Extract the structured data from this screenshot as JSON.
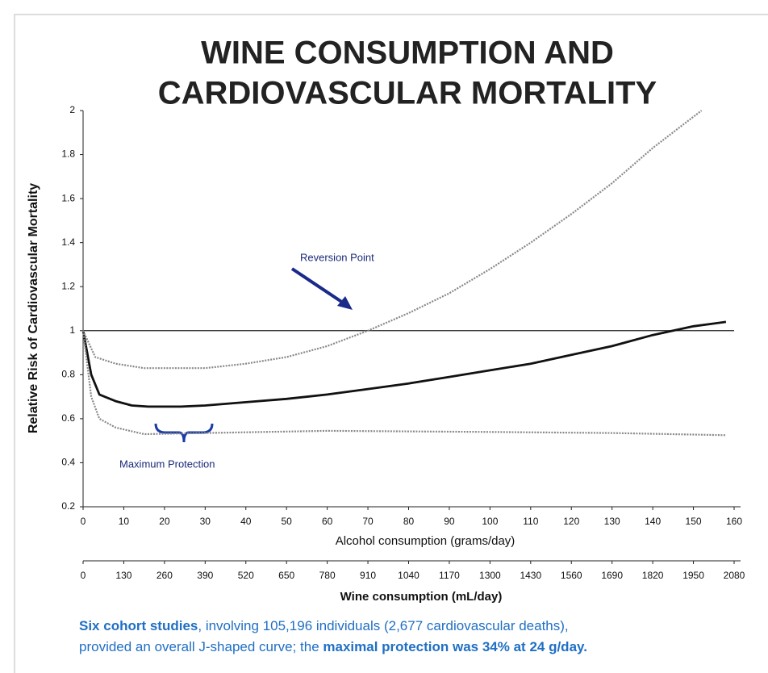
{
  "chart_data": {
    "type": "line",
    "title": [
      "WINE CONSUMPTION AND",
      "CARDIOVASCULAR MORTALITY"
    ],
    "x_label": "Alcohol consumption (grams/day)",
    "y_label": "Relative Risk of Cardiovascular Mortality",
    "x2_label": "Wine consumption (mL/day)",
    "xlim": [
      0,
      160
    ],
    "xticks": [
      0,
      10,
      20,
      30,
      40,
      50,
      60,
      70,
      80,
      90,
      100,
      110,
      120,
      130,
      140,
      150,
      160
    ],
    "x2lim": [
      0,
      2080
    ],
    "x2ticks": [
      0,
      130,
      260,
      390,
      520,
      650,
      780,
      910,
      1040,
      1170,
      1300,
      1430,
      1560,
      1690,
      1820,
      1950,
      2080
    ],
    "ylim": [
      0.2,
      2
    ],
    "yticks": [
      0.2,
      0.4,
      0.6,
      0.8,
      1,
      1.2,
      1.4,
      1.6,
      1.8,
      2
    ],
    "reference_line": 1,
    "series": [
      {
        "color": "#111111",
        "dash": false,
        "x": [
          0,
          2,
          4,
          8,
          12,
          16,
          24,
          30,
          40,
          50,
          60,
          70,
          80,
          90,
          100,
          110,
          120,
          130,
          140,
          150,
          158
        ],
        "values": [
          1,
          0.8,
          0.71,
          0.68,
          0.66,
          0.655,
          0.655,
          0.66,
          0.675,
          0.69,
          0.71,
          0.735,
          0.76,
          0.79,
          0.82,
          0.85,
          0.89,
          0.93,
          0.98,
          1.02,
          1.04
        ]
      },
      {
        "color": "#888888",
        "dash": true,
        "x": [
          0,
          3,
          8,
          15,
          30,
          40,
          50,
          60,
          70,
          80,
          90,
          100,
          110,
          120,
          130,
          140,
          152
        ],
        "values": [
          1,
          0.88,
          0.85,
          0.83,
          0.83,
          0.85,
          0.88,
          0.93,
          1.0,
          1.08,
          1.17,
          1.28,
          1.4,
          1.53,
          1.67,
          1.83,
          2.0
        ]
      },
      {
        "color": "#888888",
        "dash": true,
        "x": [
          0,
          2,
          4,
          8,
          15,
          30,
          60,
          100,
          130,
          158
        ],
        "values": [
          1,
          0.7,
          0.6,
          0.56,
          0.53,
          0.535,
          0.545,
          0.54,
          0.535,
          0.525
        ]
      }
    ],
    "annotations": [
      "Reversion Point",
      "Maximum Protection"
    ],
    "caption": [
      [
        {
          "text": "Six cohort studies",
          "bold": true
        },
        {
          "text": ", involving 105,196 individuals (2,677 cardiovascular deaths),",
          "bold": false
        }
      ],
      [
        {
          "text": "provided an overall J-shaped curve; the ",
          "bold": false
        },
        {
          "text": "maximal protection was 34% at 24 g/day.",
          "bold": true
        }
      ]
    ]
  }
}
